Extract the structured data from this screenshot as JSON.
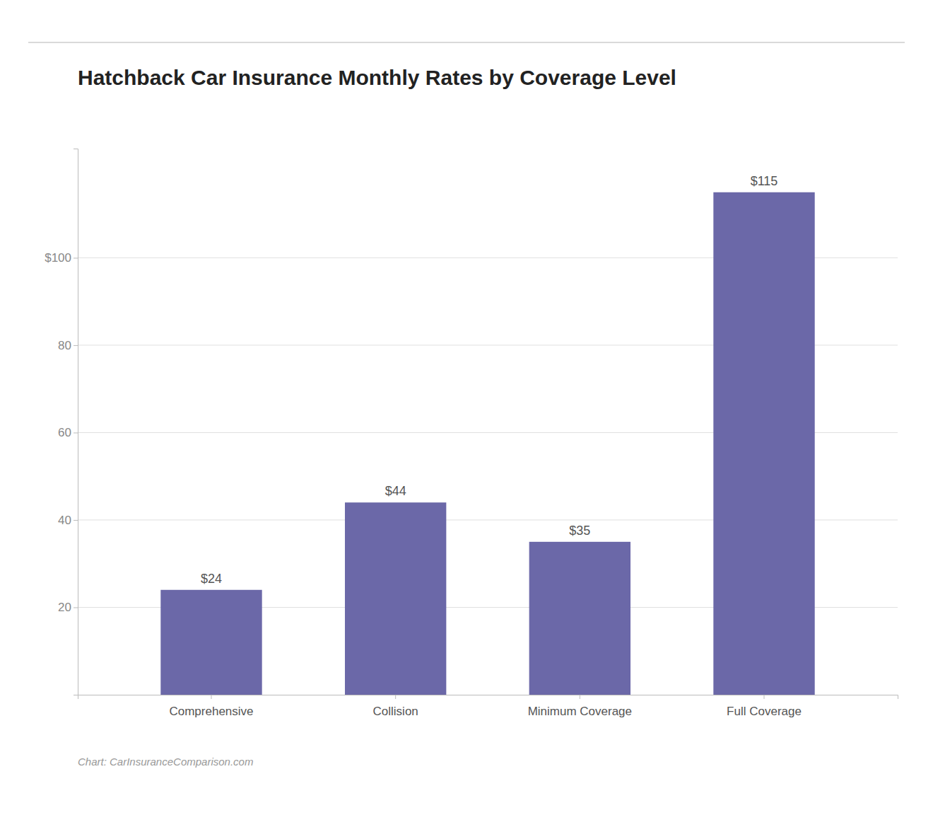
{
  "chart_data": {
    "type": "bar",
    "title": "Hatchback Car Insurance Monthly Rates by Coverage Level",
    "categories": [
      "Comprehensive",
      "Collision",
      "Minimum Coverage",
      "Full Coverage"
    ],
    "values": [
      24,
      44,
      35,
      115
    ],
    "value_labels": [
      "$24",
      "$44",
      "$35",
      "$115"
    ],
    "color": "#6B68A8",
    "ylim": [
      0,
      125
    ],
    "yticks": [
      20,
      40,
      60,
      80,
      {
        "value": 100,
        "label": "$100"
      }
    ],
    "grid": true,
    "data_labels": true,
    "annotations": [
      "Chart: CarInsuranceComparison.com"
    ]
  }
}
